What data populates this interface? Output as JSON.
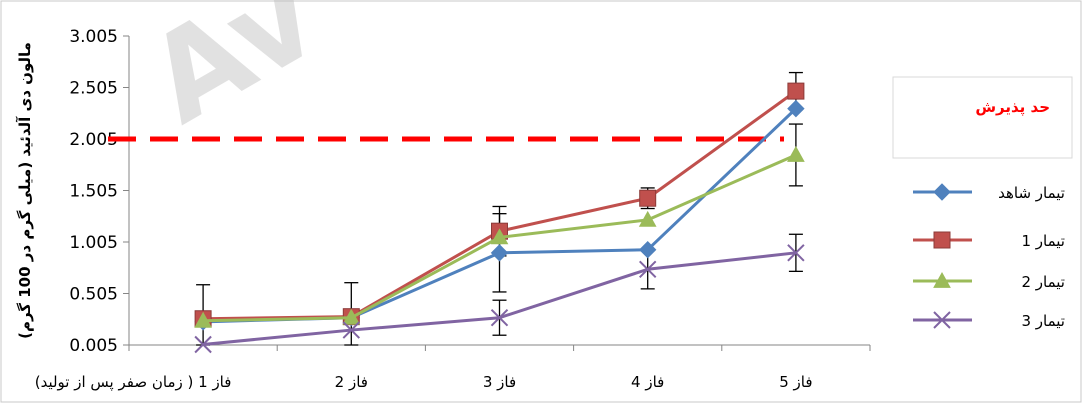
{
  "chart_data": {
    "type": "line",
    "title": "",
    "ylabel": "مالون دی آلدئید (میلی گرم در 100 گرم)",
    "xlabel": "",
    "categories": [
      "فاز 1 ( زمان صفر پس از تولید)",
      "فاز 2",
      "فاز 3",
      "فاز 4",
      "فاز 5"
    ],
    "y_ticks": [
      "0.005",
      "0.505",
      "1.005",
      "1.505",
      "2.005",
      "2.505",
      "3.005"
    ],
    "ylim": [
      0.005,
      3.005
    ],
    "grid": false,
    "legend_position": "right",
    "series": [
      {
        "name": "تیمار شاهد",
        "color": "#4f81bd",
        "marker": "diamond",
        "values": [
          0.23,
          0.27,
          0.9,
          0.93,
          2.3
        ],
        "errors": [
          0.36,
          0.34,
          0.38,
          0.0,
          0.0
        ]
      },
      {
        "name": "تیمار 1",
        "color": "#c0504d",
        "marker": "square",
        "values": [
          0.26,
          0.28,
          1.11,
          1.43,
          2.47
        ],
        "errors": [
          0.0,
          0.0,
          0.24,
          0.1,
          0.18
        ]
      },
      {
        "name": "تیمار 2",
        "color": "#9bbb59",
        "marker": "triangle",
        "values": [
          0.24,
          0.27,
          1.05,
          1.22,
          1.85
        ],
        "errors": [
          0.0,
          0.0,
          0.0,
          0.0,
          0.3
        ]
      },
      {
        "name": "تیمار 3",
        "color": "#8064a2",
        "marker": "x",
        "values": [
          0.01,
          0.15,
          0.27,
          0.74,
          0.9
        ],
        "errors": [
          0.0,
          0.0,
          0.17,
          0.19,
          0.18
        ]
      }
    ],
    "reference_line": {
      "label": "حد پذیرش",
      "value": 2.005,
      "color": "#ff0000",
      "style": "dashed"
    },
    "watermark": "Av"
  }
}
